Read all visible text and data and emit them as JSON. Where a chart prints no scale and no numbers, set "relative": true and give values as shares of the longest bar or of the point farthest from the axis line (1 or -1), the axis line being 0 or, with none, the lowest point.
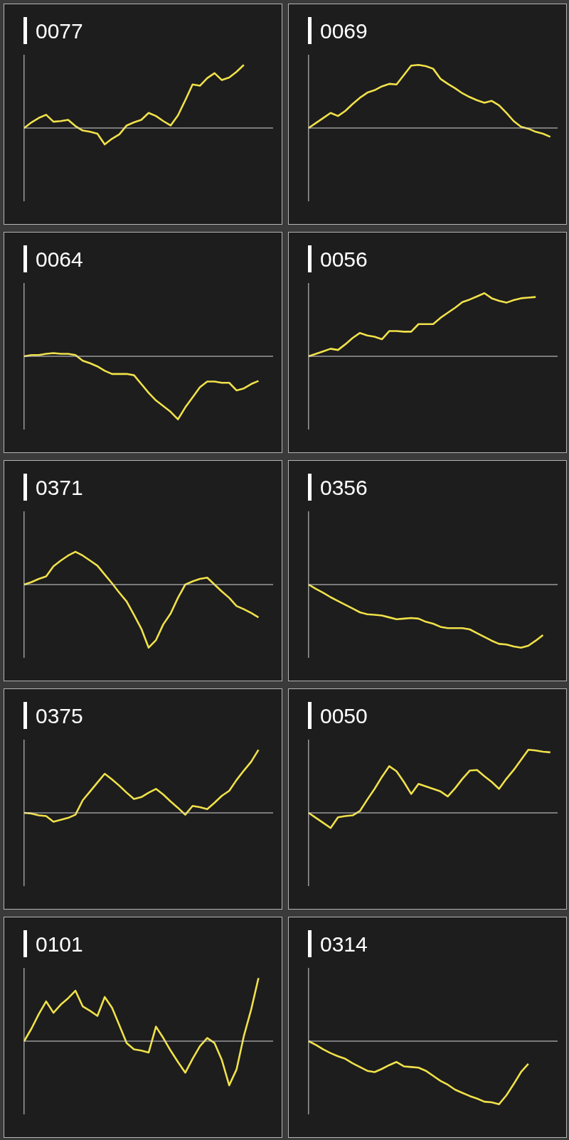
{
  "chart_data": [
    {
      "type": "line",
      "title": "0077",
      "relative": true,
      "marker": "none",
      "categories": [
        null,
        null,
        null,
        null,
        null,
        null,
        null,
        null,
        null,
        null,
        null,
        null,
        null,
        null,
        null,
        null,
        null,
        null,
        null,
        null,
        null,
        null,
        null,
        null,
        null,
        null,
        null,
        null,
        null,
        null,
        null,
        null,
        null,
        null,
        null
      ],
      "series": [
        {
          "color": "#f0e14a",
          "values": [
            0,
            0.09,
            0.16,
            0.21,
            0.1,
            0.11,
            0.13,
            0.03,
            -0.04,
            -0.06,
            -0.09,
            -0.26,
            -0.17,
            -0.1,
            0.04,
            0.09,
            0.13,
            0.24,
            0.19,
            0.11,
            0.04,
            0.2,
            0.44,
            0.69,
            0.67,
            0.79,
            0.87,
            0.76,
            0.8,
            0.89,
            1,
            null,
            null,
            null,
            null
          ]
        }
      ]
    },
    {
      "type": "line",
      "title": "0069",
      "relative": true,
      "marker": "none",
      "categories": [
        null,
        null,
        null,
        null,
        null,
        null,
        null,
        null,
        null,
        null,
        null,
        null,
        null,
        null,
        null,
        null,
        null,
        null,
        null,
        null,
        null,
        null,
        null,
        null,
        null,
        null,
        null,
        null,
        null,
        null,
        null,
        null,
        null,
        null,
        null
      ],
      "series": [
        {
          "color": "#f0e14a",
          "values": [
            0,
            0.08,
            0.16,
            0.24,
            0.19,
            0.27,
            0.38,
            0.48,
            0.56,
            0.6,
            0.66,
            0.7,
            0.69,
            0.84,
            0.99,
            1,
            0.98,
            0.94,
            0.78,
            0.7,
            0.63,
            0.55,
            0.49,
            0.44,
            0.4,
            0.43,
            0.36,
            0.24,
            0.11,
            0.02,
            -0.01,
            -0.06,
            -0.09,
            -0.14,
            null
          ]
        }
      ]
    },
    {
      "type": "line",
      "title": "0064",
      "relative": true,
      "marker": "none",
      "categories": [
        null,
        null,
        null,
        null,
        null,
        null,
        null,
        null,
        null,
        null,
        null,
        null,
        null,
        null,
        null,
        null,
        null,
        null,
        null,
        null,
        null,
        null,
        null,
        null,
        null,
        null,
        null,
        null,
        null,
        null,
        null,
        null,
        null,
        null,
        null
      ],
      "series": [
        {
          "color": "#f0e14a",
          "values": [
            0,
            0.02,
            0.02,
            0.04,
            0.05,
            0.04,
            0.04,
            0.02,
            -0.07,
            -0.11,
            -0.16,
            -0.23,
            -0.28,
            -0.28,
            -0.28,
            -0.3,
            -0.44,
            -0.58,
            -0.7,
            -0.79,
            -0.88,
            -1,
            -0.81,
            -0.65,
            -0.49,
            -0.4,
            -0.4,
            -0.42,
            -0.42,
            -0.54,
            -0.51,
            -0.44,
            -0.39,
            null,
            null
          ]
        }
      ]
    },
    {
      "type": "line",
      "title": "0056",
      "relative": true,
      "marker": "none",
      "categories": [
        null,
        null,
        null,
        null,
        null,
        null,
        null,
        null,
        null,
        null,
        null,
        null,
        null,
        null,
        null,
        null,
        null,
        null,
        null,
        null,
        null,
        null,
        null,
        null,
        null,
        null,
        null,
        null,
        null,
        null,
        null,
        null,
        null,
        null,
        null
      ],
      "series": [
        {
          "color": "#f0e14a",
          "values": [
            0,
            0.04,
            0.08,
            0.12,
            0.1,
            0.19,
            0.29,
            0.37,
            0.33,
            0.31,
            0.27,
            0.4,
            0.4,
            0.39,
            0.39,
            0.51,
            0.51,
            0.51,
            0.61,
            0.69,
            0.77,
            0.86,
            0.9,
            0.95,
            1,
            0.92,
            0.88,
            0.85,
            0.89,
            0.92,
            0.93,
            0.94,
            null,
            null,
            null
          ]
        }
      ]
    },
    {
      "type": "line",
      "title": "0371",
      "relative": true,
      "marker": "none",
      "categories": [
        null,
        null,
        null,
        null,
        null,
        null,
        null,
        null,
        null,
        null,
        null,
        null,
        null,
        null,
        null,
        null,
        null,
        null,
        null,
        null,
        null,
        null,
        null,
        null,
        null,
        null,
        null,
        null,
        null,
        null,
        null,
        null,
        null,
        null,
        null
      ],
      "series": [
        {
          "color": "#f0e14a",
          "values": [
            0,
            0.04,
            0.09,
            0.13,
            0.29,
            0.38,
            0.46,
            0.52,
            0.46,
            0.38,
            0.3,
            0.16,
            0.02,
            -0.13,
            -0.27,
            -0.48,
            -0.7,
            -1,
            -0.88,
            -0.63,
            -0.46,
            -0.21,
            0,
            0.05,
            0.09,
            0.11,
            0,
            -0.11,
            -0.21,
            -0.34,
            -0.39,
            -0.45,
            -0.52,
            null,
            null
          ]
        }
      ]
    },
    {
      "type": "line",
      "title": "0356",
      "relative": true,
      "marker": "none",
      "categories": [
        null,
        null,
        null,
        null,
        null,
        null,
        null,
        null,
        null,
        null,
        null,
        null,
        null,
        null,
        null,
        null,
        null,
        null,
        null,
        null,
        null,
        null,
        null,
        null,
        null,
        null,
        null,
        null,
        null,
        null,
        null,
        null,
        null,
        null,
        null
      ],
      "series": [
        {
          "color": "#f0e14a",
          "values": [
            0,
            -0.07,
            -0.13,
            -0.2,
            -0.26,
            -0.32,
            -0.38,
            -0.44,
            -0.47,
            -0.48,
            -0.49,
            -0.52,
            -0.55,
            -0.54,
            -0.53,
            -0.54,
            -0.59,
            -0.62,
            -0.67,
            -0.69,
            -0.69,
            -0.69,
            -0.71,
            -0.77,
            -0.83,
            -0.89,
            -0.94,
            -0.95,
            -0.98,
            -1,
            -0.97,
            -0.89,
            -0.8,
            null,
            null
          ]
        }
      ]
    },
    {
      "type": "line",
      "title": "0375",
      "relative": true,
      "marker": "none",
      "categories": [
        null,
        null,
        null,
        null,
        null,
        null,
        null,
        null,
        null,
        null,
        null,
        null,
        null,
        null,
        null,
        null,
        null,
        null,
        null,
        null,
        null,
        null,
        null,
        null,
        null,
        null,
        null,
        null,
        null,
        null,
        null,
        null,
        null,
        null,
        null
      ],
      "series": [
        {
          "color": "#f0e14a",
          "values": [
            0,
            -0.01,
            -0.04,
            -0.05,
            -0.14,
            -0.11,
            -0.08,
            -0.03,
            0.2,
            0.34,
            0.48,
            0.62,
            0.53,
            0.43,
            0.32,
            0.22,
            0.25,
            0.32,
            0.38,
            0.29,
            0.18,
            0.08,
            -0.03,
            0.11,
            0.09,
            0.06,
            0.16,
            0.27,
            0.35,
            0.52,
            0.67,
            0.81,
            1,
            null,
            null
          ]
        }
      ]
    },
    {
      "type": "line",
      "title": "0050",
      "relative": true,
      "marker": "none",
      "categories": [
        null,
        null,
        null,
        null,
        null,
        null,
        null,
        null,
        null,
        null,
        null,
        null,
        null,
        null,
        null,
        null,
        null,
        null,
        null,
        null,
        null,
        null,
        null,
        null,
        null,
        null,
        null,
        null,
        null,
        null,
        null,
        null,
        null,
        null,
        null
      ],
      "series": [
        {
          "color": "#f0e14a",
          "values": [
            0,
            -0.08,
            -0.16,
            -0.24,
            -0.07,
            -0.05,
            -0.04,
            0.03,
            0.21,
            0.38,
            0.57,
            0.74,
            0.66,
            0.49,
            0.3,
            0.46,
            0.42,
            0.38,
            0.34,
            0.26,
            0.39,
            0.54,
            0.67,
            0.68,
            0.58,
            0.49,
            0.38,
            0.54,
            0.68,
            0.84,
            1,
            0.99,
            0.97,
            0.96,
            null
          ]
        }
      ]
    },
    {
      "type": "line",
      "title": "0101",
      "relative": true,
      "marker": "none",
      "categories": [
        null,
        null,
        null,
        null,
        null,
        null,
        null,
        null,
        null,
        null,
        null,
        null,
        null,
        null,
        null,
        null,
        null,
        null,
        null,
        null,
        null,
        null,
        null,
        null,
        null,
        null,
        null,
        null,
        null,
        null,
        null,
        null,
        null,
        null,
        null
      ],
      "series": [
        {
          "color": "#f0e14a",
          "values": [
            0,
            0.2,
            0.43,
            0.63,
            0.45,
            0.58,
            0.68,
            0.8,
            0.55,
            0.48,
            0.4,
            0.7,
            0.53,
            0.25,
            -0.03,
            -0.13,
            -0.15,
            -0.18,
            0.23,
            0.05,
            -0.15,
            -0.33,
            -0.5,
            -0.28,
            -0.08,
            0.05,
            -0.03,
            -0.3,
            -0.7,
            -0.45,
            0.08,
            0.5,
            1,
            null,
            null
          ]
        }
      ]
    },
    {
      "type": "line",
      "title": "0314",
      "relative": true,
      "marker": "none",
      "categories": [
        null,
        null,
        null,
        null,
        null,
        null,
        null,
        null,
        null,
        null,
        null,
        null,
        null,
        null,
        null,
        null,
        null,
        null,
        null,
        null,
        null,
        null,
        null,
        null,
        null,
        null,
        null,
        null,
        null,
        null,
        null,
        null,
        null,
        null,
        null
      ],
      "series": [
        {
          "color": "#f0e14a",
          "values": [
            0,
            -0.06,
            -0.13,
            -0.19,
            -0.24,
            -0.28,
            -0.35,
            -0.41,
            -0.47,
            -0.49,
            -0.44,
            -0.38,
            -0.33,
            -0.4,
            -0.41,
            -0.42,
            -0.47,
            -0.55,
            -0.63,
            -0.69,
            -0.77,
            -0.82,
            -0.87,
            -0.91,
            -0.96,
            -0.97,
            -1,
            -0.86,
            -0.68,
            -0.49,
            -0.36,
            null,
            null,
            null,
            null
          ]
        }
      ]
    }
  ]
}
